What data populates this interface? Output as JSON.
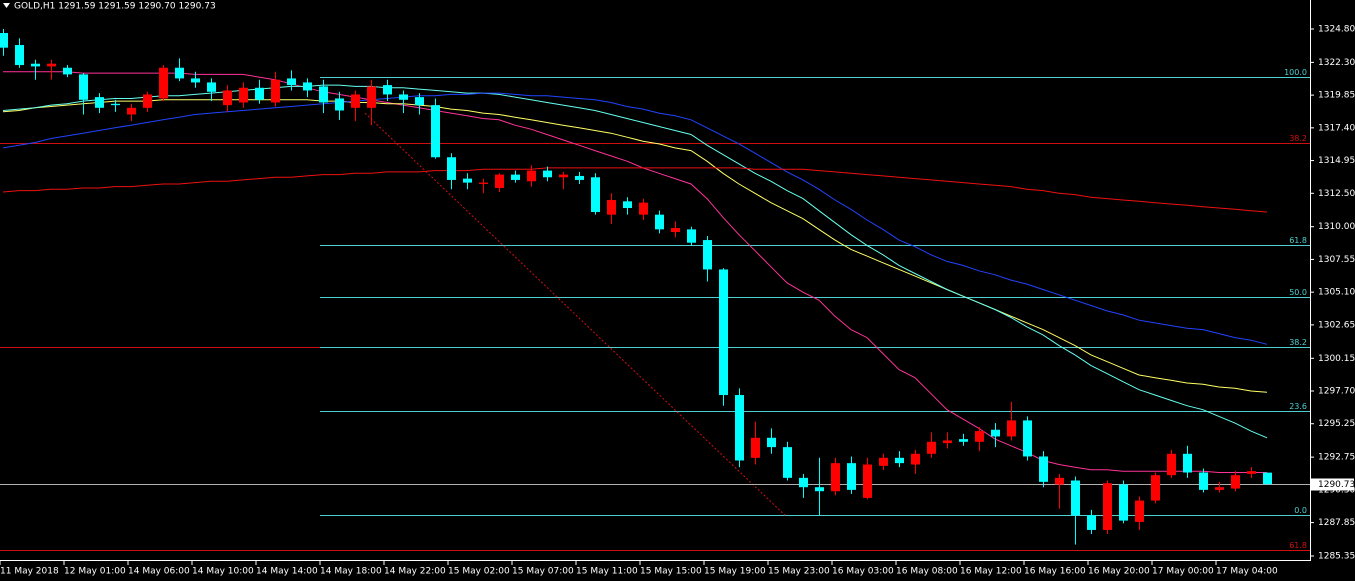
{
  "chart_data": {
    "type": "candlestick",
    "title": "GOLD,H1  1291.59 1291.59 1290.70 1290.73",
    "categories": [
      "11 May 2018",
      null,
      null,
      null,
      "12 May 01:00",
      null,
      null,
      null,
      "14 May 06:00",
      null,
      null,
      null,
      "14 May 10:00",
      null,
      null,
      null,
      "14 May 14:00",
      null,
      null,
      null,
      "14 May 18:00",
      null,
      null,
      null,
      "14 May 22:00",
      null,
      null,
      null,
      "15 May 02:00",
      null,
      null,
      null,
      "15 May 07:00",
      null,
      null,
      null,
      "15 May 11:00",
      null,
      null,
      null,
      "15 May 15:00",
      null,
      null,
      null,
      "15 May 19:00",
      null,
      null,
      null,
      "15 May 23:00",
      null,
      null,
      null,
      "16 May 03:00",
      null,
      null,
      null,
      "16 May 08:00",
      null,
      null,
      null,
      "16 May 12:00",
      null,
      null,
      null,
      "16 May 16:00",
      null,
      null,
      null,
      "16 May 20:00",
      null,
      null,
      null,
      "17 May 00:00",
      null,
      null,
      null,
      "17 May 04:00",
      null,
      null,
      null
    ],
    "open": [
      1324.5,
      1323.6,
      1322.2,
      1322.0,
      1321.9,
      1321.4,
      1319.7,
      1319.2,
      1318.4,
      1318.9,
      1319.6,
      1321.9,
      1321.1,
      1320.8,
      1319.1,
      1319.3,
      1320.4,
      1319.3,
      1321.1,
      1320.8,
      1320.5,
      1319.6,
      1318.9,
      1318.9,
      1320.6,
      1319.9,
      1319.7,
      1319.1,
      1315.2,
      1313.6,
      1313.2,
      1312.9,
      1313.9,
      1313.4,
      1314.2,
      1313.7,
      1313.8,
      1313.7,
      1310.9,
      1311.9,
      1310.9,
      1310.9,
      1309.6,
      1309.8,
      1309.0,
      1306.8,
      1297.4,
      1292.7,
      1294.2,
      1293.5,
      1291.2,
      1290.5,
      1290.2,
      1292.3,
      1289.7,
      1292.1,
      1292.7,
      1292.2,
      1293.0,
      1293.8,
      1294.1,
      1293.9,
      1294.8,
      1294.3,
      1295.5,
      1292.8,
      1290.7,
      1291.0,
      1288.4,
      1287.3,
      1290.7,
      1287.9,
      1289.5,
      1291.4,
      1293.0,
      1291.6,
      1290.3,
      1290.4,
      1291.5,
      1291.59
    ],
    "high": [
      1324.8,
      1324.1,
      1322.5,
      1322.5,
      1322.1,
      1321.5,
      1320.0,
      1319.5,
      1319.2,
      1320.1,
      1322.1,
      1322.6,
      1321.6,
      1321.1,
      1320.6,
      1320.8,
      1321.0,
      1321.6,
      1321.7,
      1321.1,
      1321.0,
      1320.1,
      1320.2,
      1321.0,
      1321.0,
      1320.2,
      1320.0,
      1319.6,
      1315.5,
      1314.0,
      1313.6,
      1314.0,
      1314.2,
      1314.6,
      1314.5,
      1314.1,
      1314.1,
      1314.0,
      1312.5,
      1312.2,
      1312.1,
      1311.2,
      1310.4,
      1310.0,
      1309.3,
      1306.9,
      1297.9,
      1295.4,
      1294.9,
      1293.9,
      1291.5,
      1292.7,
      1292.7,
      1292.8,
      1292.7,
      1293.0,
      1293.2,
      1293.3,
      1294.6,
      1294.6,
      1294.5,
      1295.0,
      1295.3,
      1296.9,
      1295.8,
      1293.2,
      1291.5,
      1291.3,
      1288.8,
      1291.0,
      1291.0,
      1289.8,
      1291.6,
      1293.3,
      1293.6,
      1291.9,
      1290.9,
      1291.7,
      1292.0,
      1291.59
    ],
    "low": [
      1322.8,
      1321.9,
      1321.0,
      1321.0,
      1321.2,
      1318.4,
      1318.5,
      1318.6,
      1317.9,
      1318.6,
      1319.4,
      1320.9,
      1320.4,
      1319.4,
      1318.6,
      1318.9,
      1319.2,
      1319.0,
      1320.2,
      1319.7,
      1318.5,
      1318.0,
      1317.9,
      1317.6,
      1319.4,
      1318.5,
      1318.4,
      1315.1,
      1312.8,
      1312.8,
      1312.5,
      1312.6,
      1313.3,
      1313.0,
      1313.4,
      1312.8,
      1313.2,
      1310.9,
      1310.2,
      1310.9,
      1310.5,
      1309.5,
      1309.2,
      1308.6,
      1305.9,
      1296.6,
      1292.0,
      1292.2,
      1293.0,
      1291.0,
      1289.7,
      1288.4,
      1289.9,
      1290.0,
      1289.6,
      1291.8,
      1292.0,
      1291.5,
      1292.7,
      1293.4,
      1293.6,
      1293.2,
      1293.5,
      1294.0,
      1292.5,
      1290.5,
      1288.9,
      1286.2,
      1287.0,
      1287.0,
      1287.8,
      1287.3,
      1289.3,
      1291.2,
      1291.2,
      1290.1,
      1290.1,
      1290.2,
      1291.2,
      1290.7
    ],
    "close": [
      1323.4,
      1322.1,
      1322.0,
      1322.2,
      1321.4,
      1319.5,
      1318.9,
      1319.1,
      1318.9,
      1319.9,
      1321.9,
      1321.1,
      1320.8,
      1320.1,
      1320.2,
      1320.4,
      1319.5,
      1321.0,
      1320.6,
      1320.2,
      1319.3,
      1318.7,
      1319.9,
      1320.5,
      1319.9,
      1319.5,
      1319.1,
      1315.2,
      1313.5,
      1313.3,
      1313.3,
      1313.9,
      1313.5,
      1314.2,
      1313.7,
      1313.9,
      1313.5,
      1311.1,
      1312.0,
      1311.4,
      1311.8,
      1309.8,
      1309.9,
      1308.8,
      1306.8,
      1297.4,
      1292.5,
      1294.2,
      1293.5,
      1291.2,
      1290.5,
      1290.2,
      1292.3,
      1290.3,
      1292.2,
      1292.7,
      1292.3,
      1293.0,
      1293.9,
      1294.0,
      1293.9,
      1294.7,
      1294.3,
      1295.5,
      1292.8,
      1290.9,
      1291.2,
      1288.4,
      1287.3,
      1290.8,
      1288.0,
      1289.5,
      1291.4,
      1293.0,
      1291.6,
      1290.3,
      1290.5,
      1291.4,
      1291.7,
      1290.73
    ],
    "up_color": "#ff0000",
    "down_color": "#00ffff",
    "series": [
      {
        "color": "#ff3399",
        "values": [
          1321.6,
          1321.6,
          1321.6,
          1321.6,
          1321.6,
          1321.5,
          1321.5,
          1321.5,
          1321.5,
          1321.5,
          1321.5,
          1321.5,
          1321.4,
          1321.4,
          1321.4,
          1321.4,
          1321.2,
          1321.0,
          1320.7,
          1320.4,
          1320.1,
          1319.9,
          1319.7,
          1319.5,
          1319.3,
          1319.1,
          1318.9,
          1318.7,
          1318.5,
          1318.3,
          1318.1,
          1318.0,
          1317.6,
          1317.3,
          1316.9,
          1316.5,
          1316.1,
          1315.7,
          1315.3,
          1314.9,
          1314.4,
          1314.0,
          1313.6,
          1313.2,
          1312.1,
          1310.7,
          1309.4,
          1308.2,
          1307.0,
          1305.8,
          1305.1,
          1304.5,
          1303.3,
          1302.3,
          1301.7,
          1300.5,
          1299.3,
          1298.7,
          1297.5,
          1296.3,
          1295.6,
          1294.9,
          1294.1,
          1293.6,
          1293.1,
          1292.5,
          1292.2,
          1292.0,
          1291.8,
          1291.8,
          1291.7,
          1291.7,
          1291.7,
          1291.7,
          1291.7,
          1291.7,
          1291.6,
          1291.6,
          1291.6,
          1291.6
        ]
      },
      {
        "color": "#ffff66",
        "values": [
          1318.6,
          1318.7,
          1318.9,
          1319.0,
          1319.1,
          1319.2,
          1319.3,
          1319.4,
          1319.4,
          1319.4,
          1319.5,
          1319.5,
          1319.5,
          1319.5,
          1319.5,
          1319.5,
          1319.5,
          1319.5,
          1319.5,
          1319.5,
          1319.4,
          1319.4,
          1319.3,
          1319.3,
          1319.2,
          1319.2,
          1319.1,
          1319.0,
          1318.8,
          1318.7,
          1318.5,
          1318.4,
          1318.2,
          1318.0,
          1317.8,
          1317.6,
          1317.4,
          1317.2,
          1317.0,
          1316.7,
          1316.4,
          1316.2,
          1315.9,
          1315.7,
          1314.9,
          1314.0,
          1313.2,
          1312.5,
          1311.8,
          1311.2,
          1310.6,
          1309.8,
          1309.0,
          1308.3,
          1307.8,
          1307.3,
          1306.8,
          1306.3,
          1305.8,
          1305.3,
          1304.8,
          1304.3,
          1303.8,
          1303.3,
          1302.8,
          1302.3,
          1301.7,
          1301.1,
          1300.4,
          1299.9,
          1299.4,
          1298.9,
          1298.7,
          1298.5,
          1298.3,
          1298.2,
          1298.0,
          1297.9,
          1297.7,
          1297.6
        ]
      },
      {
        "color": "#66ffee",
        "values": [
          1318.7,
          1318.8,
          1318.9,
          1319.1,
          1319.2,
          1319.4,
          1319.5,
          1319.6,
          1319.6,
          1319.7,
          1319.8,
          1319.8,
          1319.9,
          1320.0,
          1320.1,
          1320.2,
          1320.3,
          1320.4,
          1320.5,
          1320.5,
          1320.6,
          1320.6,
          1320.5,
          1320.5,
          1320.4,
          1320.4,
          1320.3,
          1320.2,
          1320.1,
          1320.0,
          1320.0,
          1319.9,
          1319.7,
          1319.5,
          1319.3,
          1319.1,
          1318.9,
          1318.7,
          1318.4,
          1318.1,
          1317.8,
          1317.5,
          1317.2,
          1316.9,
          1316.1,
          1315.4,
          1314.7,
          1314.0,
          1313.4,
          1312.7,
          1312.1,
          1311.2,
          1310.3,
          1309.4,
          1308.6,
          1307.9,
          1307.1,
          1306.5,
          1305.9,
          1305.3,
          1304.8,
          1304.3,
          1303.8,
          1303.2,
          1302.5,
          1301.9,
          1301.1,
          1300.4,
          1299.6,
          1299.0,
          1298.4,
          1297.8,
          1297.4,
          1297.0,
          1296.6,
          1296.3,
          1295.8,
          1295.3,
          1294.7,
          1294.2
        ]
      },
      {
        "color": "#2244ff",
        "values": [
          1315.9,
          1316.1,
          1316.3,
          1316.6,
          1316.8,
          1317.0,
          1317.2,
          1317.4,
          1317.6,
          1317.8,
          1318.0,
          1318.2,
          1318.4,
          1318.5,
          1318.6,
          1318.7,
          1318.8,
          1318.9,
          1319.0,
          1319.1,
          1319.2,
          1319.3,
          1319.4,
          1319.5,
          1319.6,
          1319.7,
          1319.8,
          1319.8,
          1319.9,
          1319.9,
          1320.0,
          1320.0,
          1319.9,
          1319.8,
          1319.8,
          1319.7,
          1319.6,
          1319.5,
          1319.3,
          1319.0,
          1318.8,
          1318.5,
          1318.3,
          1318.0,
          1317.4,
          1316.8,
          1316.2,
          1315.5,
          1314.8,
          1314.1,
          1313.5,
          1312.8,
          1312.0,
          1311.3,
          1310.5,
          1309.8,
          1309.0,
          1308.5,
          1307.9,
          1307.4,
          1307.1,
          1306.7,
          1306.4,
          1306.0,
          1305.7,
          1305.3,
          1304.9,
          1304.5,
          1304.1,
          1303.7,
          1303.4,
          1303.0,
          1302.8,
          1302.6,
          1302.4,
          1302.3,
          1302.0,
          1301.7,
          1301.5,
          1301.2
        ]
      },
      {
        "color": "#ee1111",
        "values": [
          1312.6,
          1312.7,
          1312.7,
          1312.8,
          1312.8,
          1312.9,
          1312.9,
          1313.0,
          1313.0,
          1313.1,
          1313.2,
          1313.2,
          1313.3,
          1313.4,
          1313.4,
          1313.5,
          1313.6,
          1313.7,
          1313.7,
          1313.8,
          1313.9,
          1313.9,
          1314.0,
          1314.0,
          1314.1,
          1314.1,
          1314.1,
          1314.2,
          1314.2,
          1314.2,
          1314.3,
          1314.3,
          1314.3,
          1314.3,
          1314.4,
          1314.4,
          1314.4,
          1314.4,
          1314.4,
          1314.4,
          1314.4,
          1314.4,
          1314.4,
          1314.4,
          1314.4,
          1314.4,
          1314.4,
          1314.3,
          1314.3,
          1314.3,
          1314.3,
          1314.2,
          1314.1,
          1314.0,
          1313.9,
          1313.8,
          1313.7,
          1313.6,
          1313.5,
          1313.4,
          1313.3,
          1313.2,
          1313.1,
          1313.0,
          1312.8,
          1312.7,
          1312.5,
          1312.4,
          1312.2,
          1312.1,
          1312.0,
          1311.9,
          1311.8,
          1311.7,
          1311.6,
          1311.5,
          1311.4,
          1311.3,
          1311.2,
          1311.1
        ]
      }
    ],
    "levels": [
      {
        "label": "100.0",
        "value": 1321.2,
        "color": "#4fd0d0",
        "span": "right"
      },
      {
        "label": "61.8",
        "value": 1308.6,
        "color": "#4fd0d0",
        "span": "right"
      },
      {
        "label": "50.0",
        "value": 1304.7,
        "color": "#4fd0d0",
        "span": "right"
      },
      {
        "label": "38.2",
        "value": 1301.0,
        "color": "#4fd0d0",
        "span": "right"
      },
      {
        "label": "23.6",
        "value": 1296.2,
        "color": "#4fd0d0",
        "span": "right"
      },
      {
        "label": "0.0",
        "value": 1288.4,
        "color": "#4fd0d0",
        "span": "right"
      },
      {
        "label": "38.2",
        "value": 1316.3,
        "color": "#d01010",
        "span": "full"
      },
      {
        "label": "61.8",
        "value": 1285.8,
        "color": "#d01010",
        "span": "full"
      },
      {
        "value": 1301.0,
        "color": "#d01010",
        "span": "left"
      }
    ],
    "trendline": {
      "start": 1318.5,
      "end": 1288.4,
      "color": "#d01010"
    },
    "last_price": {
      "value": 1290.73,
      "label": "1290.73"
    },
    "ylim": [
      1285.05,
      1326.97
    ],
    "yticks": [
      {
        "value": 1324.8,
        "label": "1324.80"
      },
      {
        "value": 1322.3,
        "label": "1322.30"
      },
      {
        "value": 1319.85,
        "label": "1319.85"
      },
      {
        "value": 1317.4,
        "label": "1317.40"
      },
      {
        "value": 1314.95,
        "label": "1314.95"
      },
      {
        "value": 1312.5,
        "label": "1312.50"
      },
      {
        "value": 1310,
        "label": "1310.00"
      },
      {
        "value": 1307.55,
        "label": "1307.55"
      },
      {
        "value": 1305.1,
        "label": "1305.10"
      },
      {
        "value": 1302.65,
        "label": "1302.65"
      },
      {
        "value": 1300.15,
        "label": "1300.15"
      },
      {
        "value": 1297.7,
        "label": "1297.70"
      },
      {
        "value": 1295.25,
        "label": "1295.25"
      },
      {
        "value": 1292.75,
        "label": "1292.75"
      },
      {
        "value": 1290.3,
        "label": "1290.30"
      },
      {
        "value": 1287.85,
        "label": "1287.85"
      },
      {
        "value": 1285.35,
        "label": "1285.35"
      }
    ]
  }
}
